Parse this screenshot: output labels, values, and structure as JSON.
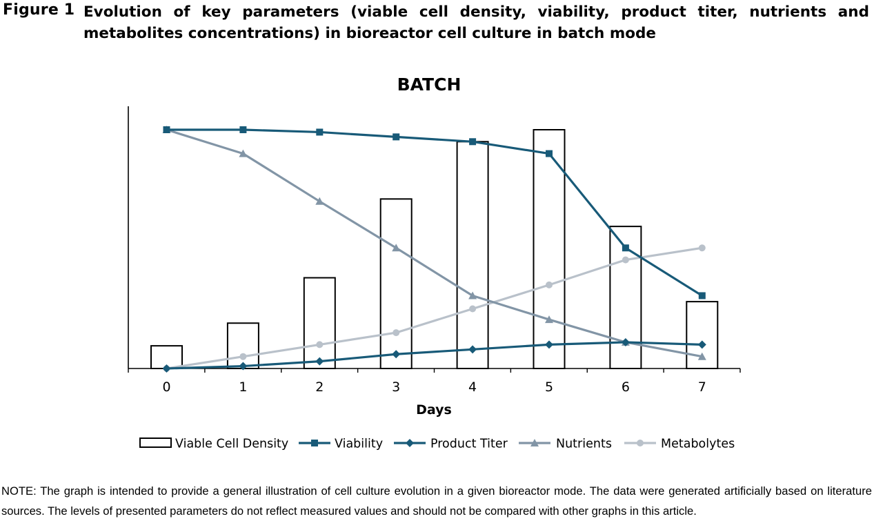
{
  "figure": {
    "label": "Figure 1",
    "caption": "Evolution of key parameters (viable cell density, viability, product titer, nutrients and metabolites concentrations) in bioreactor cell culture in batch mode"
  },
  "note": "NOTE: The graph is intended to provide a general illustration of cell culture evolution in a given bioreactor mode. The data were generated artificially based on literature sources. The levels of presented parameters do not reflect measured values and should not be compared with other graphs in this article.",
  "chart_data": {
    "type": "bar+line",
    "title": "BATCH",
    "xlabel": "Days",
    "ylabel": "",
    "y_axis_labels": "none",
    "ylim": [
      0,
      100
    ],
    "grid": false,
    "legend_position": "bottom",
    "categories": [
      "0",
      "1",
      "2",
      "3",
      "4",
      "5",
      "6",
      "7"
    ],
    "series": [
      {
        "name": "Viable Cell Density",
        "type": "bar",
        "marker": "none",
        "color": "#000000",
        "values": [
          9.5,
          19,
          38,
          71,
          95,
          100,
          59.5,
          28
        ]
      },
      {
        "name": "Viability",
        "type": "line",
        "marker": "square",
        "color": "#185a78",
        "values": [
          100,
          100,
          99,
          97,
          95,
          90,
          50.5,
          30.5
        ]
      },
      {
        "name": "Product Titer",
        "type": "line",
        "marker": "diamond",
        "color": "#185a78",
        "values": [
          0,
          1,
          3,
          6,
          8,
          10,
          11,
          10
        ]
      },
      {
        "name": "Nutrients",
        "type": "line",
        "marker": "triangle",
        "color": "#8295a6",
        "values": [
          100,
          90,
          70,
          50.5,
          30.5,
          20.5,
          11,
          5
        ]
      },
      {
        "name": "Metabolytes",
        "type": "line",
        "marker": "circle",
        "color": "#b9c1ca",
        "values": [
          0,
          5,
          10,
          15,
          25,
          35,
          45.5,
          50.5
        ]
      }
    ]
  }
}
